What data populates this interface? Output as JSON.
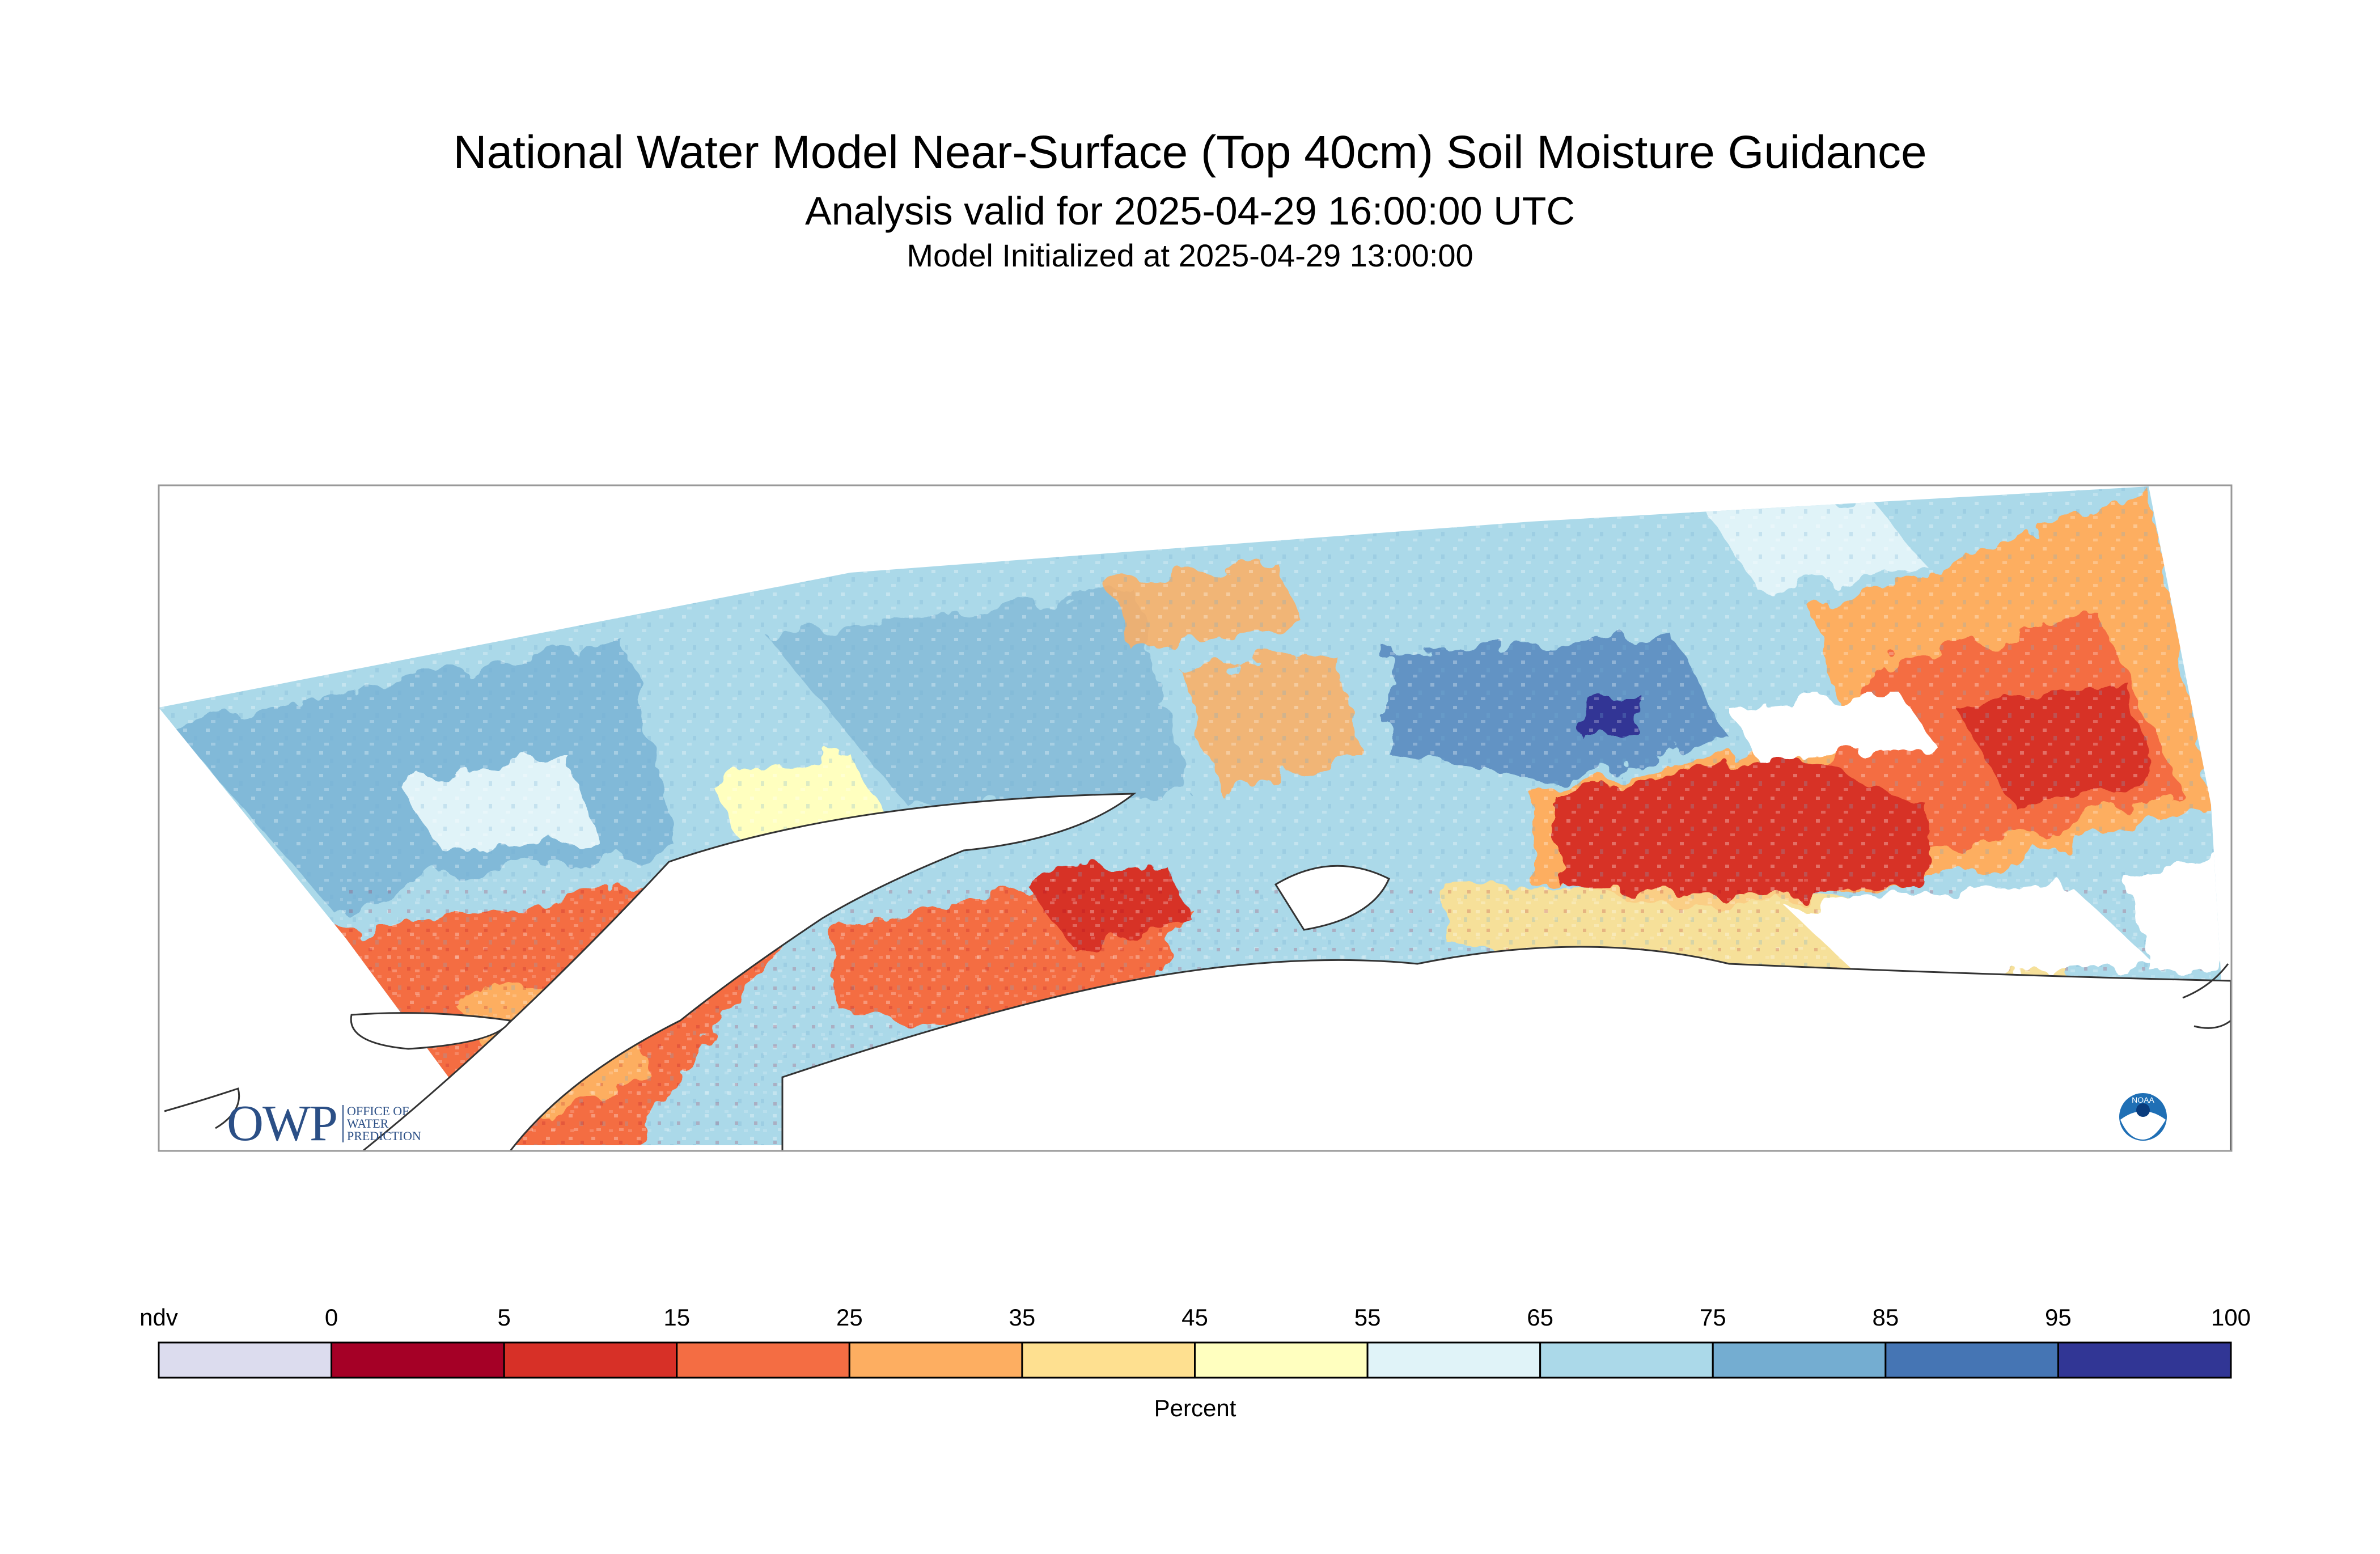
{
  "titles": {
    "main": "National Water Model Near-Surface (Top 40cm) Soil Moisture Guidance",
    "analysis": "Analysis valid for 2025-04-29 16:00:00 UTC",
    "initialized": "Model Initialized at 2025-04-29 13:00:00"
  },
  "logos": {
    "owp_letters": "OWP",
    "owp_sub": [
      "OFFICE OF",
      "WATER",
      "PREDICTION"
    ],
    "noaa": "NOAA"
  },
  "legend": {
    "labels": [
      "ndv",
      "0",
      "5",
      "15",
      "25",
      "35",
      "45",
      "55",
      "65",
      "75",
      "85",
      "95",
      "100"
    ],
    "colors": [
      "#dcdcee",
      "#a50026",
      "#d73027",
      "#f46d43",
      "#fdae61",
      "#fee090",
      "#ffffbf",
      "#e0f3f8",
      "#abd9e9",
      "#74add1",
      "#4575b4",
      "#313695"
    ],
    "unit": "Percent"
  },
  "map_colors": {
    "water": "#ffffff",
    "coast": "#333333",
    "frame": "#999999"
  }
}
